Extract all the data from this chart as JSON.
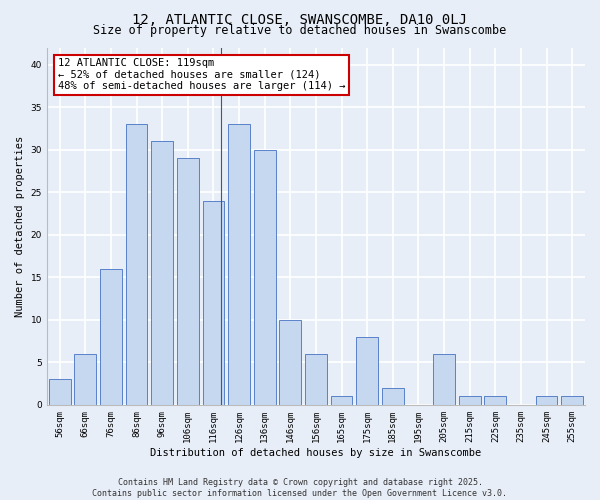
{
  "title": "12, ATLANTIC CLOSE, SWANSCOMBE, DA10 0LJ",
  "subtitle": "Size of property relative to detached houses in Swanscombe",
  "xlabel": "Distribution of detached houses by size in Swanscombe",
  "ylabel": "Number of detached properties",
  "categories": [
    "56sqm",
    "66sqm",
    "76sqm",
    "86sqm",
    "96sqm",
    "106sqm",
    "116sqm",
    "126sqm",
    "136sqm",
    "146sqm",
    "156sqm",
    "165sqm",
    "175sqm",
    "185sqm",
    "195sqm",
    "205sqm",
    "215sqm",
    "225sqm",
    "235sqm",
    "245sqm",
    "255sqm"
  ],
  "values": [
    3,
    6,
    16,
    33,
    31,
    29,
    24,
    33,
    30,
    10,
    6,
    1,
    8,
    2,
    0,
    6,
    1,
    1,
    0,
    1,
    1
  ],
  "bar_color": "#c5d8f0",
  "bar_edge_color": "#4472c4",
  "annotation_text": "12 ATLANTIC CLOSE: 119sqm\n← 52% of detached houses are smaller (124)\n48% of semi-detached houses are larger (114) →",
  "annotation_box_facecolor": "#ffffff",
  "annotation_box_edgecolor": "#cc0000",
  "ylim": [
    0,
    42
  ],
  "yticks": [
    0,
    5,
    10,
    15,
    20,
    25,
    30,
    35,
    40
  ],
  "footer": "Contains HM Land Registry data © Crown copyright and database right 2025.\nContains public sector information licensed under the Open Government Licence v3.0.",
  "bg_color": "#e8eef8",
  "plot_bg_color": "#e8eef8",
  "grid_color": "#ffffff",
  "title_fontsize": 10,
  "subtitle_fontsize": 8.5,
  "axis_label_fontsize": 7.5,
  "tick_fontsize": 6.5,
  "annotation_fontsize": 7.5,
  "footer_fontsize": 6
}
